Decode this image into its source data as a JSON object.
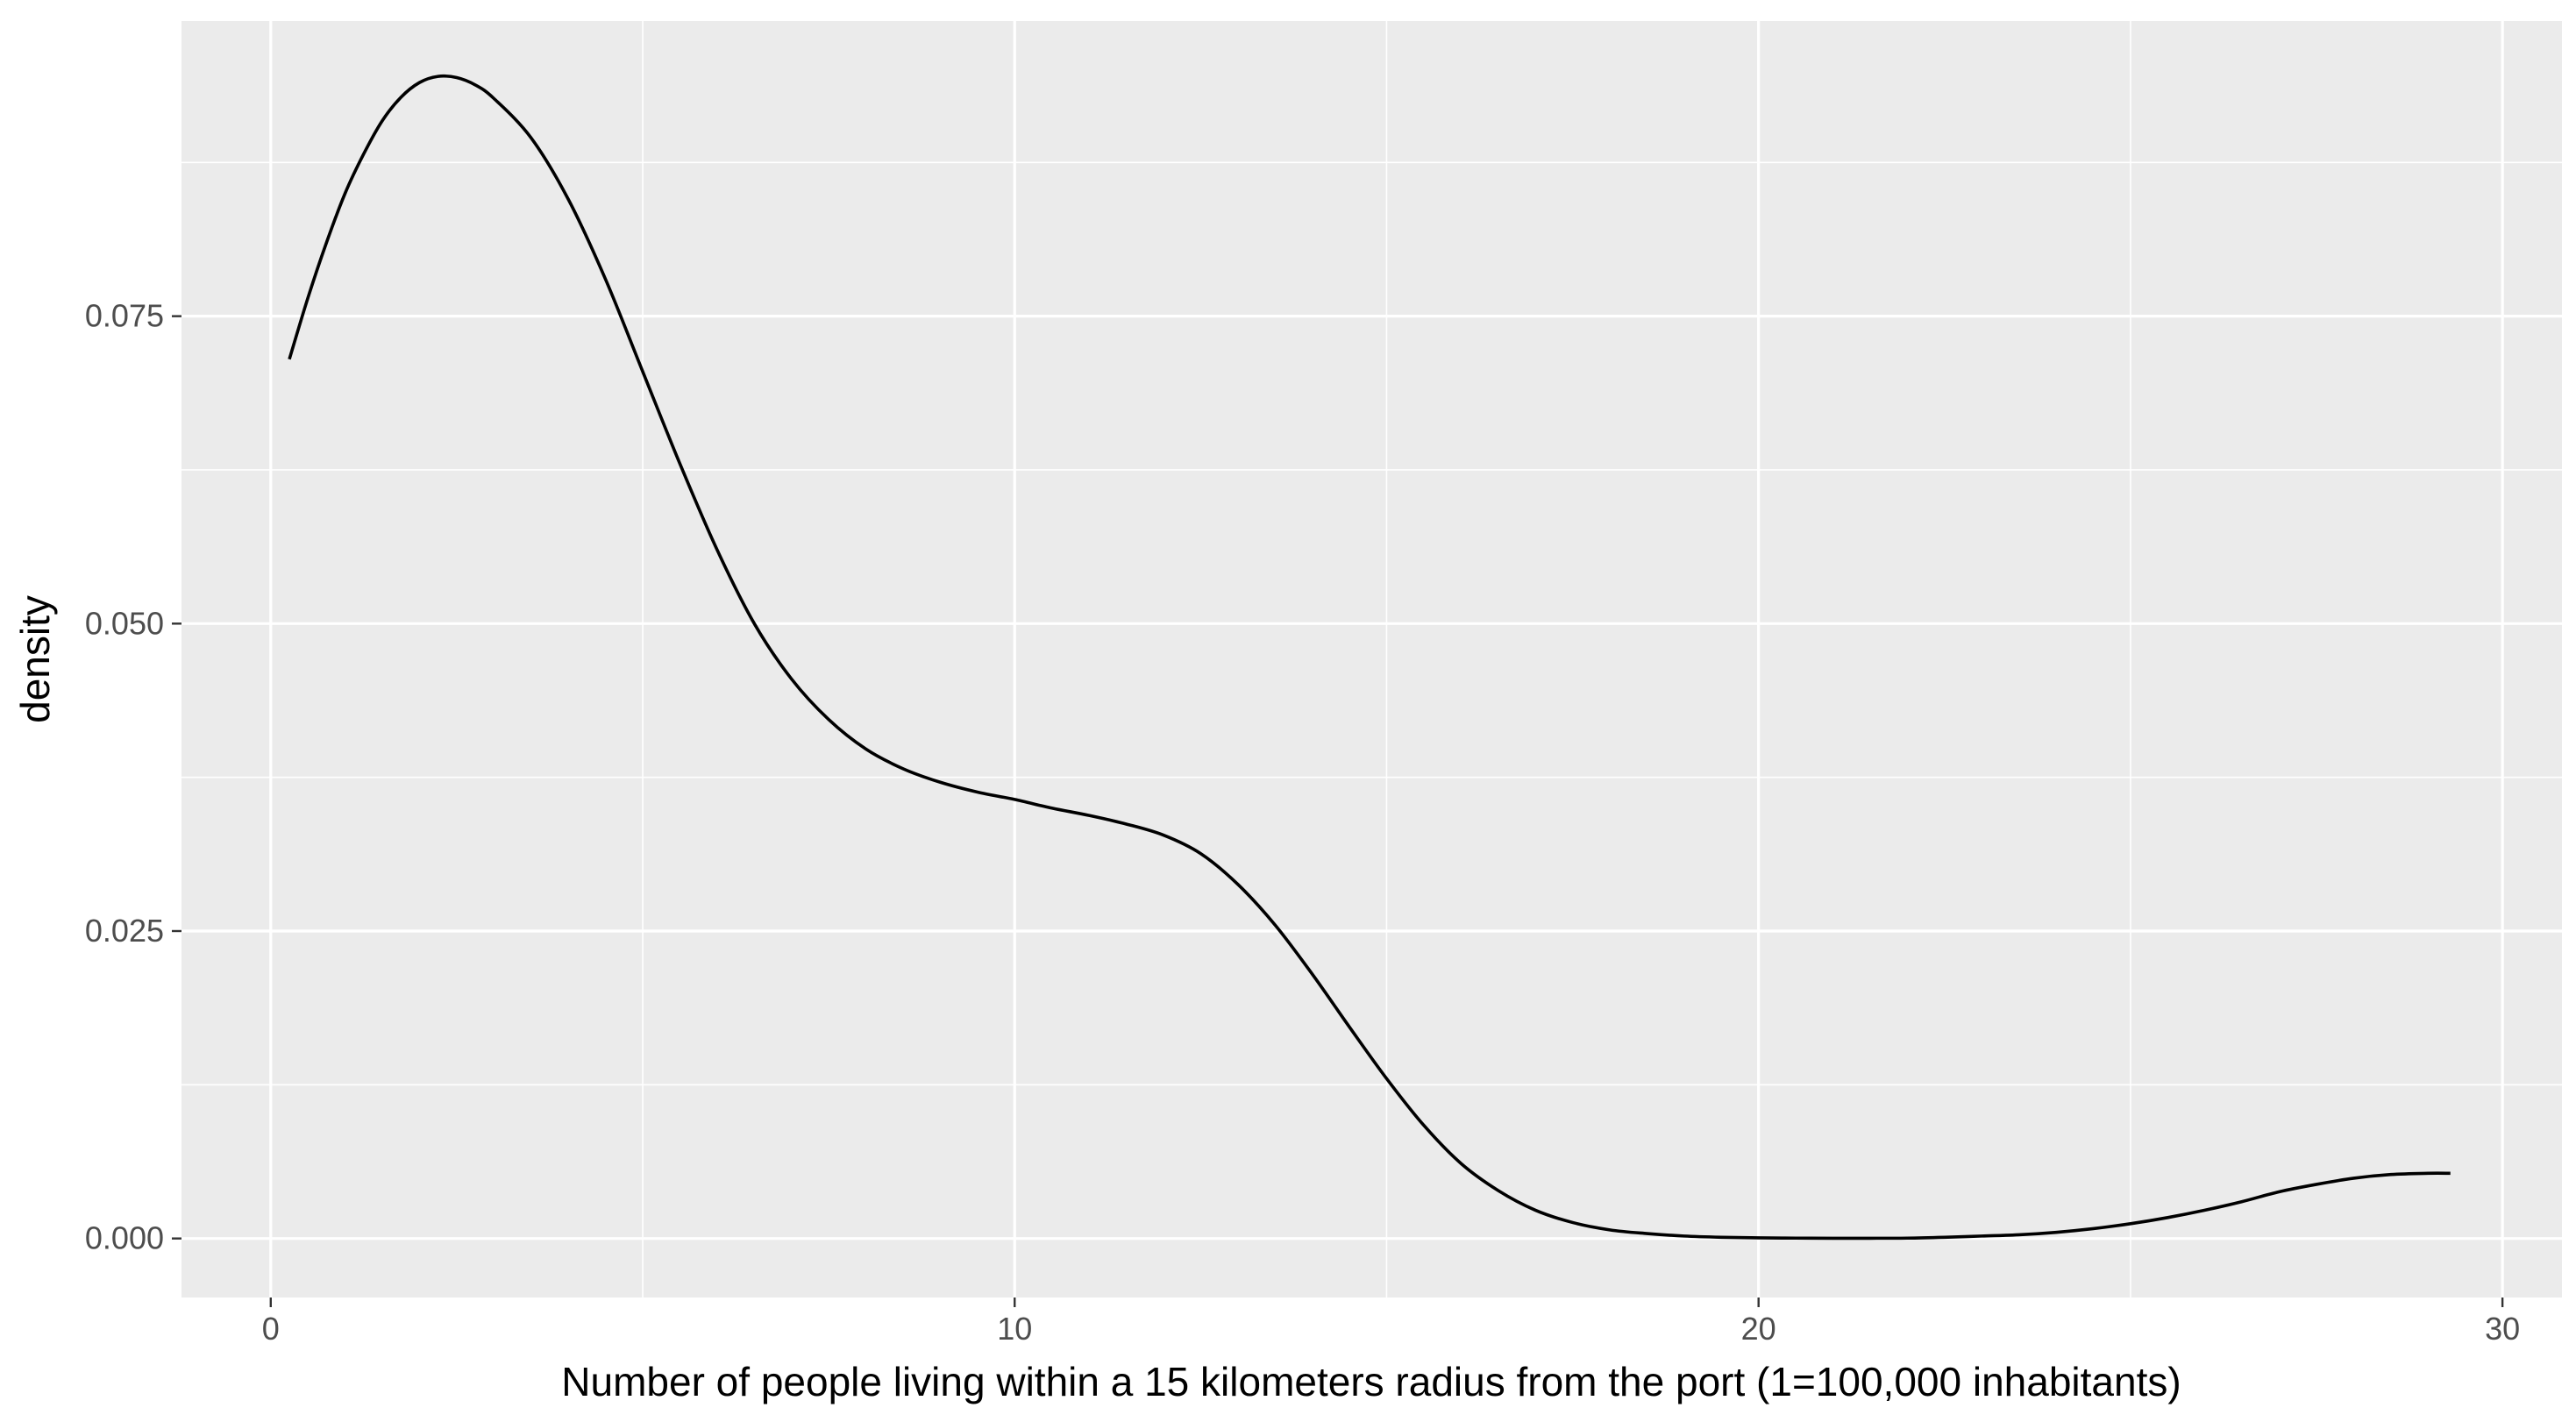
{
  "chart_data": {
    "type": "line",
    "title": "",
    "xlabel": "Number of people living within a 15 kilometers radius from the port (1=100,000 inhabitants)",
    "ylabel": "density",
    "xlim": [
      -1.2,
      30.8
    ],
    "ylim": [
      -0.0048,
      0.099
    ],
    "x_ticks": [
      0,
      10,
      20,
      30
    ],
    "x_tick_labels": [
      "0",
      "10",
      "20",
      "30"
    ],
    "y_ticks": [
      0.0,
      0.025,
      0.05,
      0.075
    ],
    "y_tick_labels": [
      "0.000",
      "0.025",
      "0.050",
      "0.075"
    ],
    "x_minor_grid": [
      5,
      15,
      25
    ],
    "y_minor_grid": [
      0.0125,
      0.0375,
      0.0625,
      0.0875
    ],
    "grid": true,
    "legend": "none",
    "colors": {
      "panel_background": "#ebebeb",
      "grid_line": "#ffffff",
      "line": "#000000",
      "tick_text": "#4d4d4d",
      "tick_mark": "#333333"
    },
    "series": [
      {
        "x": [
          0.25,
          0.5,
          0.75,
          1.0,
          1.25,
          1.5,
          1.75,
          2.0,
          2.25,
          2.5,
          2.75,
          3.0,
          3.5,
          4.0,
          4.5,
          5.0,
          5.5,
          6.0,
          6.5,
          7.0,
          7.5,
          8.0,
          8.5,
          9.0,
          9.5,
          10.0,
          10.5,
          11.0,
          11.5,
          12.0,
          12.5,
          13.0,
          13.5,
          14.0,
          14.5,
          15.0,
          15.5,
          16.0,
          16.5,
          17.0,
          17.5,
          18.0,
          18.5,
          19.0,
          19.5,
          20.0,
          20.5,
          21.0,
          21.5,
          22.0,
          22.5,
          23.0,
          23.5,
          24.0,
          24.5,
          25.0,
          25.5,
          26.0,
          26.5,
          27.0,
          27.5,
          28.0,
          28.5,
          29.0,
          29.3
        ],
        "y": [
          0.0715,
          0.0765,
          0.081,
          0.085,
          0.0882,
          0.0909,
          0.0928,
          0.094,
          0.0945,
          0.0944,
          0.0938,
          0.0927,
          0.0895,
          0.0845,
          0.078,
          0.0705,
          0.063,
          0.056,
          0.05,
          0.0455,
          0.0422,
          0.0398,
          0.0382,
          0.0371,
          0.0363,
          0.0357,
          0.035,
          0.0344,
          0.0337,
          0.0328,
          0.0313,
          0.0288,
          0.0255,
          0.0215,
          0.0172,
          0.013,
          0.0092,
          0.0061,
          0.0039,
          0.0023,
          0.0013,
          0.0007,
          0.0004,
          0.0002,
          0.0001,
          5e-05,
          3e-05,
          2e-05,
          2e-05,
          3e-05,
          0.0001,
          0.0002,
          0.0003,
          0.0005,
          0.0008,
          0.0012,
          0.0017,
          0.0023,
          0.003,
          0.0038,
          0.0044,
          0.0049,
          0.0052,
          0.0053,
          0.0053
        ]
      }
    ]
  }
}
